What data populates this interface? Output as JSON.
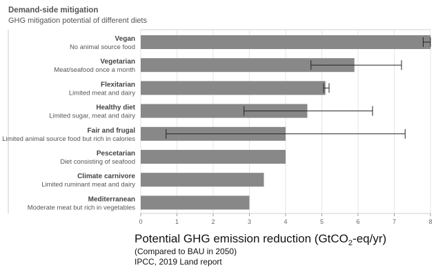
{
  "heading": "Demand-side mitigation",
  "subheading": "GHG mitigation potential of different diets",
  "footer": {
    "label_prefix": "Potential GHG emission reduction (GtCO",
    "label_sub": "2",
    "label_suffix": "-eq/yr)",
    "note1": "(Compared to BAU in 2050)",
    "note2": "IPCC, 2019 Land report"
  },
  "chart_data": {
    "type": "bar",
    "orientation": "horizontal",
    "categories": [
      {
        "name": "Vegan",
        "desc": "No animal source food"
      },
      {
        "name": "Vegetarian",
        "desc": "Meat/seafood once a month"
      },
      {
        "name": "Flexitarian",
        "desc": "Limited meat and dairy"
      },
      {
        "name": "Healthy diet",
        "desc": "Limited sugar, meat and dairy"
      },
      {
        "name": "Fair and frugal",
        "desc": "Limited animal source food but rich in calories"
      },
      {
        "name": "Pescetarian",
        "desc": "Diet consisting of seafood"
      },
      {
        "name": "Climate carnivore",
        "desc": "Limited ruminant meat and dairy"
      },
      {
        "name": "Mediterranean",
        "desc": "Moderate meat but rich in vegetables"
      }
    ],
    "values": [
      8.0,
      5.9,
      5.1,
      4.6,
      4.0,
      4.0,
      3.4,
      3.0
    ],
    "error_low": [
      7.8,
      4.7,
      5.05,
      2.85,
      0.7,
      null,
      null,
      null
    ],
    "error_high": [
      8.0,
      7.2,
      5.2,
      6.4,
      7.3,
      null,
      null,
      null
    ],
    "xticks": [
      0,
      1,
      2,
      3,
      4,
      5,
      6,
      7,
      8
    ],
    "xlim": [
      0,
      8
    ],
    "bar_color": "#888888",
    "grid": true
  }
}
